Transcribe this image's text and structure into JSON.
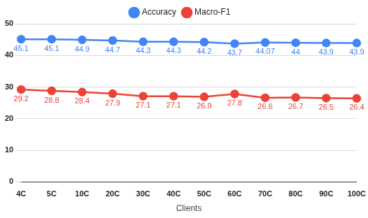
{
  "chart_data": {
    "type": "line",
    "x_label": "Clients",
    "categories": [
      "4C",
      "5C",
      "10C",
      "20C",
      "30C",
      "40C",
      "50C",
      "60C",
      "70C",
      "80C",
      "90C",
      "100C"
    ],
    "series": [
      {
        "name": "Accuracy",
        "color": "#4285f4",
        "marker": "circle",
        "values": [
          45.1,
          45.1,
          44.9,
          44.7,
          44.3,
          44.3,
          44.2,
          43.7,
          44.07,
          44,
          43.9,
          43.9
        ]
      },
      {
        "name": "Macro-F1",
        "color": "#ea4335",
        "marker": "circle",
        "values": [
          29.2,
          28.8,
          28.4,
          27.9,
          27.1,
          27.1,
          26.9,
          27.8,
          26.6,
          26.7,
          26.5,
          26.4
        ]
      }
    ],
    "ylim": [
      0,
      50
    ],
    "yticks": [
      0,
      10,
      20,
      30,
      40,
      50
    ],
    "grid": true,
    "legend": "top",
    "data_labels": true
  }
}
